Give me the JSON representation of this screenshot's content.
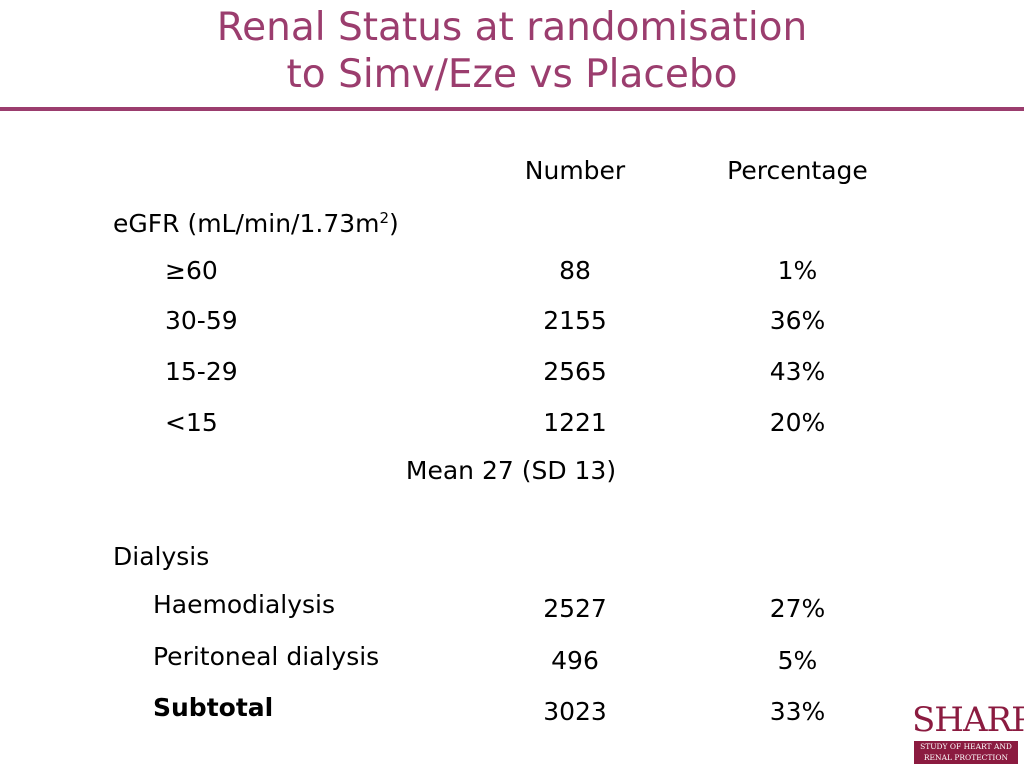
{
  "slide": {
    "title_line1": "Renal Status at randomisation",
    "title_line2": "to Simv/Eze vs Placebo",
    "accent_color": "#9b3d6e"
  },
  "table": {
    "headers": {
      "number": "Number",
      "percentage": "Percentage"
    },
    "egfr": {
      "label": "eGFR (mL/min/1.73m",
      "label_sup": "2",
      "label_end": ")",
      "rows": [
        {
          "label": "≥60",
          "number": "88",
          "percentage": "1%"
        },
        {
          "label": "30-59",
          "number": "2155",
          "percentage": "36%"
        },
        {
          "label": "15-29",
          "number": "2565",
          "percentage": "43%"
        },
        {
          "label": "<15",
          "number": "1221",
          "percentage": "20%"
        }
      ],
      "mean": "Mean 27 (SD 13)"
    },
    "dialysis": {
      "label": "Dialysis",
      "rows": [
        {
          "label": "Haemodialysis",
          "number": "2527",
          "percentage": "27%"
        },
        {
          "label": "Peritoneal dialysis",
          "number": "496",
          "percentage": "5%"
        },
        {
          "label": "Subtotal",
          "number": "3023",
          "percentage": "33%"
        }
      ]
    }
  },
  "logo": {
    "wordmark": "SHARP",
    "tagline_line1": "STUDY OF HEART AND",
    "tagline_line2": "RENAL PROTECTION",
    "brand_color": "#8b1b40"
  }
}
